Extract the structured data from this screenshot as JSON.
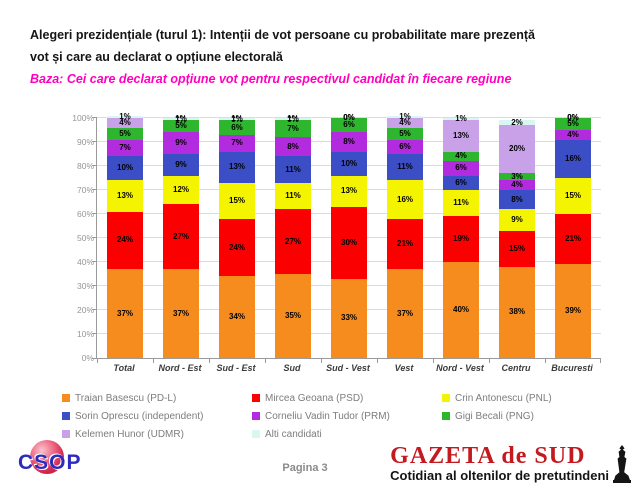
{
  "title": {
    "line1": "Alegeri prezidențiale (turul 1): Intenții de vot persoane cu probabilitate mare prezență",
    "line2": "vot și care au declarat o opțiune electorală",
    "baza": "Baza: Cei care declarat opțiune vot pentru respectivul candidat în fiecare regiune"
  },
  "chart_data": {
    "type": "bar",
    "stacked": true,
    "categories": [
      "Total",
      "Nord - Est",
      "Sud - Est",
      "Sud",
      "Sud - Vest",
      "Vest",
      "Nord - Vest",
      "Centru",
      "Bucuresti"
    ],
    "series": [
      {
        "name": "Traian Basescu (PD-L)",
        "color": "#f68b1e",
        "values": [
          37,
          37,
          34,
          35,
          33,
          37,
          40,
          38,
          39
        ]
      },
      {
        "name": "Mircea Geoana (PSD)",
        "color": "#fa0000",
        "values": [
          24,
          27,
          24,
          27,
          30,
          21,
          19,
          15,
          21
        ]
      },
      {
        "name": "Crin Antonescu (PNL)",
        "color": "#f4f400",
        "values": [
          13,
          12,
          15,
          11,
          13,
          16,
          11,
          9,
          15
        ]
      },
      {
        "name": "Sorin Oprescu (independent)",
        "color": "#3c4ec6",
        "values": [
          10,
          9,
          13,
          11,
          10,
          11,
          6,
          8,
          16
        ]
      },
      {
        "name": "Corneliu Vadin Tudor (PRM)",
        "color": "#b32bde",
        "values": [
          7,
          9,
          7,
          8,
          8,
          6,
          6,
          4,
          4
        ]
      },
      {
        "name": "Gigi Becali (PNG)",
        "color": "#2eb62e",
        "values": [
          5,
          5,
          6,
          7,
          6,
          5,
          4,
          3,
          5
        ]
      },
      {
        "name": "Kelemen Hunor (UDMR)",
        "color": "#c9a1e9",
        "values": [
          4,
          0,
          0,
          0,
          0,
          4,
          13,
          20,
          0
        ]
      },
      {
        "name": "Alti candidati",
        "color": "#d8f6f2",
        "values": [
          1,
          1,
          1,
          1,
          0,
          1,
          1,
          2,
          0
        ]
      }
    ],
    "title": "Alegeri prezidențiale (turul 1): Intenții de vot",
    "xlabel": "",
    "ylabel": "",
    "ylim": [
      0,
      100
    ],
    "ystep": 10,
    "grid": true,
    "legend_position": "bottom",
    "data_labels": "percent"
  },
  "footer": {
    "csop": "CSOP",
    "page_label": "Pagina 3",
    "gazeta_title": "GAZETA de SUD",
    "gazeta_sub": "Cotidian al oltenilor de pretutindeni"
  },
  "colors": {
    "title_text": "#151515",
    "baza_text": "#ff00bf",
    "axis": "#9a9a9a",
    "gridline": "#dcdcdc",
    "gazeta_red": "#c4191e",
    "csop_blue": "#2b2bbd"
  }
}
